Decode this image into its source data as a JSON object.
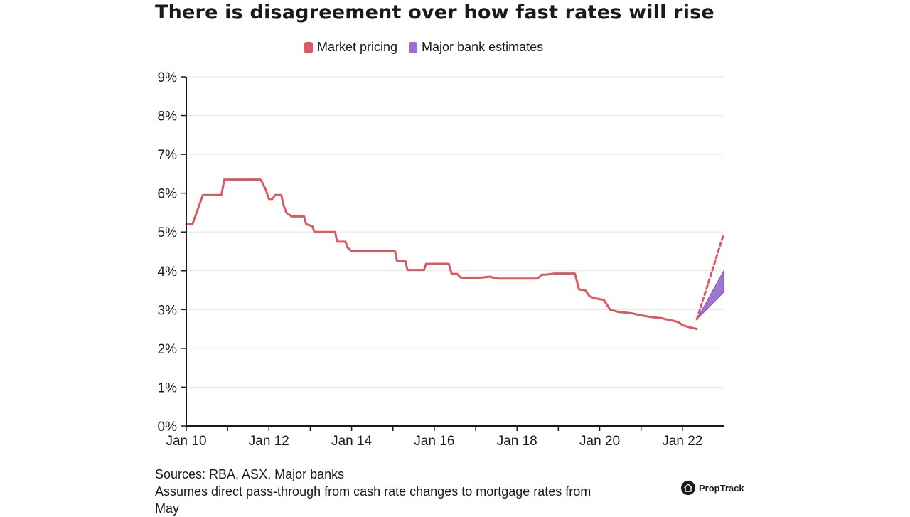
{
  "colors": {
    "market": "#d95a63",
    "bank": "#9b6fcf",
    "grid": "#e6e6e6",
    "axis": "#1a1a1a"
  },
  "footer": {
    "sources": "Sources: RBA, ASX, Major banks",
    "note_line1": "Assumes direct pass-through from cash rate changes to mortgage rates from",
    "note_line2": "May"
  },
  "brand": {
    "name": "PropTrack",
    "icon": "house-icon"
  },
  "chart_data": {
    "type": "line",
    "title": "There is disagreement over how fast rates will rise",
    "xlabel": "",
    "ylabel": "",
    "xlim": [
      2010.0,
      2023.0
    ],
    "ylim": [
      0,
      9
    ],
    "y_ticks": [
      0,
      1,
      2,
      3,
      4,
      5,
      6,
      7,
      8,
      9
    ],
    "y_tick_labels": [
      "0%",
      "1%",
      "2%",
      "3%",
      "4%",
      "5%",
      "6%",
      "7%",
      "8%",
      "9%"
    ],
    "x_ticks": [
      2010,
      2011,
      2012,
      2013,
      2014,
      2015,
      2016,
      2017,
      2018,
      2019,
      2020,
      2021,
      2022
    ],
    "x_tick_labels": [
      {
        "x": 2010,
        "label": "Jan 10"
      },
      {
        "x": 2012,
        "label": "Jan 12"
      },
      {
        "x": 2014,
        "label": "Jan 14"
      },
      {
        "x": 2016,
        "label": "Jan 16"
      },
      {
        "x": 2018,
        "label": "Jan 18"
      },
      {
        "x": 2020,
        "label": "Jan 20"
      },
      {
        "x": 2022,
        "label": "Jan 22"
      }
    ],
    "legend": [
      "Market pricing",
      "Major bank estimates"
    ],
    "grid": true,
    "series": [
      {
        "name": "Market pricing",
        "style": "solid",
        "x": [
          2010.0,
          2010.15,
          2010.4,
          2010.85,
          2010.92,
          2011.8,
          2011.92,
          2012.0,
          2012.08,
          2012.15,
          2012.3,
          2012.35,
          2012.42,
          2012.55,
          2012.6,
          2012.85,
          2012.9,
          2013.05,
          2013.1,
          2013.6,
          2013.65,
          2013.85,
          2013.9,
          2014.0,
          2015.05,
          2015.1,
          2015.3,
          2015.35,
          2015.75,
          2015.8,
          2016.35,
          2016.42,
          2016.55,
          2016.65,
          2017.0,
          2017.1,
          2017.35,
          2017.4,
          2017.55,
          2017.6,
          2018.0,
          2018.5,
          2018.6,
          2018.7,
          2018.9,
          2019.0,
          2019.4,
          2019.5,
          2019.65,
          2019.75,
          2019.85,
          2020.0,
          2020.1,
          2020.25,
          2020.45,
          2020.65,
          2020.8,
          2021.0,
          2021.3,
          2021.5,
          2021.6,
          2021.75,
          2021.9,
          2022.0,
          2022.15,
          2022.35
        ],
        "values": [
          5.2,
          5.2,
          5.95,
          5.95,
          6.35,
          6.35,
          6.1,
          5.85,
          5.85,
          5.95,
          5.95,
          5.7,
          5.5,
          5.4,
          5.4,
          5.4,
          5.2,
          5.15,
          5.0,
          5.0,
          4.75,
          4.75,
          4.6,
          4.5,
          4.5,
          4.25,
          4.25,
          4.02,
          4.02,
          4.18,
          4.18,
          3.92,
          3.92,
          3.82,
          3.82,
          3.82,
          3.85,
          3.83,
          3.8,
          3.8,
          3.8,
          3.8,
          3.9,
          3.9,
          3.93,
          3.93,
          3.93,
          3.52,
          3.5,
          3.35,
          3.3,
          3.27,
          3.25,
          3.0,
          2.94,
          2.92,
          2.9,
          2.85,
          2.8,
          2.78,
          2.75,
          2.72,
          2.68,
          2.6,
          2.55,
          2.5
        ]
      },
      {
        "name": "Market pricing (projection)",
        "style": "dashed",
        "x": [
          2022.35,
          2023.0
        ],
        "values": [
          2.75,
          4.95
        ]
      },
      {
        "name": "Major bank estimates",
        "style": "band",
        "x": [
          2022.35,
          2023.0
        ],
        "lower": [
          2.75,
          3.45
        ],
        "upper": [
          2.75,
          4.0
        ]
      }
    ]
  }
}
